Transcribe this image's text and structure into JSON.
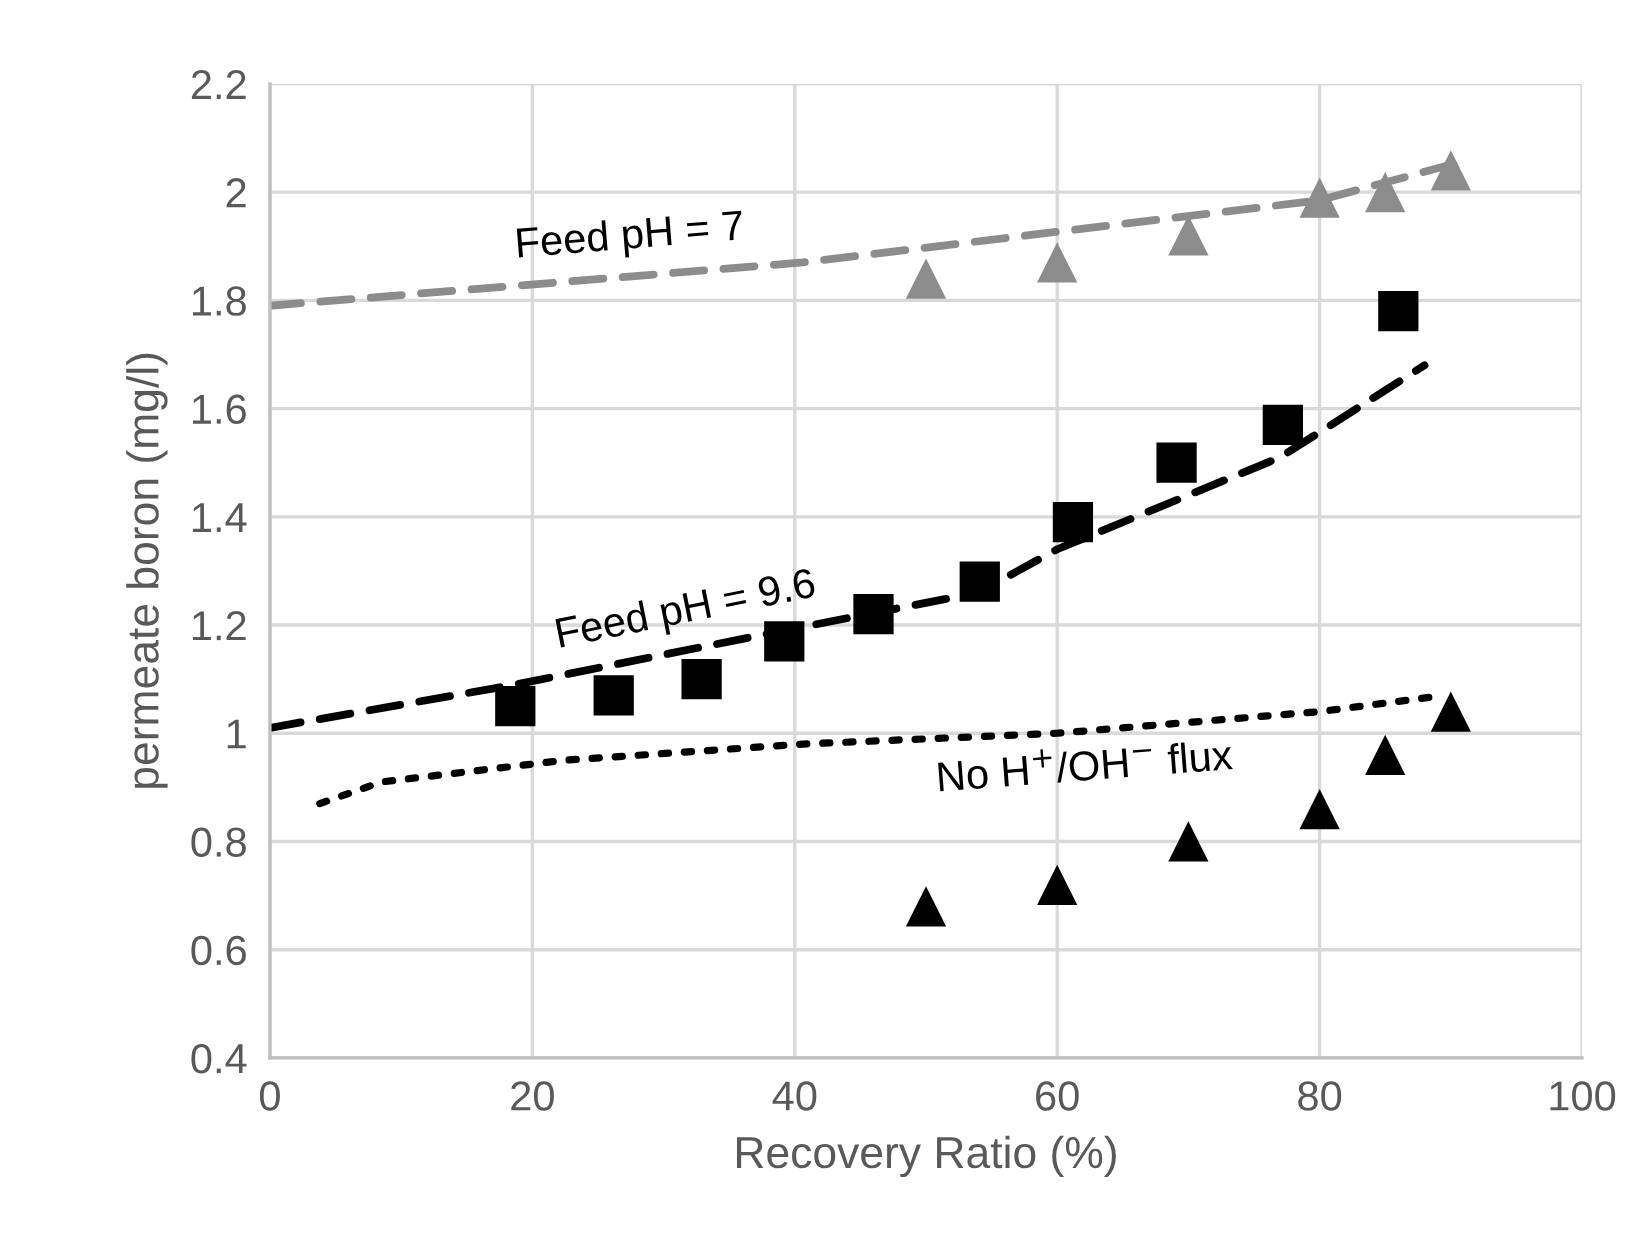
{
  "chart_data": {
    "type": "scatter",
    "xlabel": "Recovery Ratio (%)",
    "ylabel": "permeate boron (mg/l)",
    "xlim": [
      0,
      100
    ],
    "xticks": [
      0,
      20,
      40,
      60,
      80,
      100
    ],
    "ylim": [
      0.4,
      2.2
    ],
    "yticks": [
      0.4,
      0.6,
      0.8,
      1,
      1.2,
      1.4,
      1.6,
      1.8,
      2,
      2.2
    ],
    "grid": true,
    "series": [
      {
        "name": "Feed pH = 7",
        "type": "line",
        "line_style": "dashed",
        "marker": "none",
        "color": "#8c8c8c",
        "x": [
          0,
          40.6,
          80,
          91.4
        ],
        "values": [
          1.79,
          1.87,
          1.985,
          2.06
        ]
      },
      {
        "name": "Feed pH = 9.6",
        "type": "line",
        "line_style": "dashed",
        "marker": "none",
        "color": "#000000",
        "x": [
          0,
          18.7,
          39.2,
          54,
          60,
          77,
          88
        ],
        "values": [
          1.01,
          1.09,
          1.19,
          1.26,
          1.34,
          1.51,
          1.68
        ]
      },
      {
        "name": "No H$^{+}$/OH$^{−}$ flux",
        "type": "line",
        "line_style": "dotted",
        "marker": "none",
        "color": "#000000",
        "x": [
          3.8,
          8.5,
          22.4,
          40.6,
          60,
          80,
          89.5
        ],
        "values": [
          0.87,
          0.91,
          0.95,
          0.98,
          1.0,
          1.04,
          1.07
        ]
      },
      {
        "marker": "triangle",
        "color": "#8c8c8c",
        "x": [
          50,
          60,
          70,
          80,
          85,
          90
        ],
        "values": [
          1.84,
          1.87,
          1.92,
          1.99,
          2.0,
          2.04
        ]
      },
      {
        "marker": "square",
        "color": "#000000",
        "x": [
          18.7,
          26.2,
          32.9,
          39.2,
          46.0,
          54.1,
          61.2,
          69.1,
          77.2,
          86.0
        ],
        "values": [
          1.05,
          1.07,
          1.1,
          1.17,
          1.22,
          1.28,
          1.39,
          1.5,
          1.57,
          1.78
        ]
      },
      {
        "marker": "triangle",
        "color": "#000000",
        "x": [
          50,
          60,
          70,
          80,
          85,
          90
        ],
        "values": [
          0.68,
          0.72,
          0.8,
          0.86,
          0.96,
          1.04
        ]
      }
    ]
  }
}
